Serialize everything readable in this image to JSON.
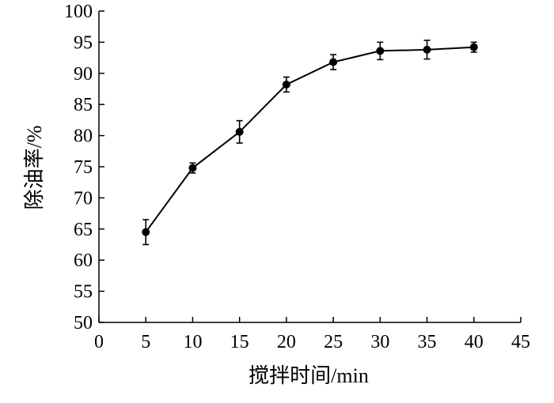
{
  "chart_data": {
    "type": "line",
    "xlabel": "搅拌时间/min",
    "ylabel": "除油率/%",
    "xlim": [
      0,
      45
    ],
    "ylim": [
      50,
      100
    ],
    "xticks": [
      0,
      5,
      10,
      15,
      20,
      25,
      30,
      35,
      40,
      45
    ],
    "yticks": [
      50,
      55,
      60,
      65,
      70,
      75,
      80,
      85,
      90,
      95,
      100
    ],
    "grid": false,
    "series": [
      {
        "x": [
          5,
          10,
          15,
          20,
          25,
          30,
          35,
          40
        ],
        "y": [
          64.5,
          74.8,
          80.6,
          88.2,
          91.8,
          93.6,
          93.8,
          94.2
        ],
        "error": [
          2.0,
          0.8,
          1.8,
          1.2,
          1.2,
          1.4,
          1.5,
          0.8
        ],
        "color": "#000000",
        "marker": "circle"
      }
    ]
  }
}
